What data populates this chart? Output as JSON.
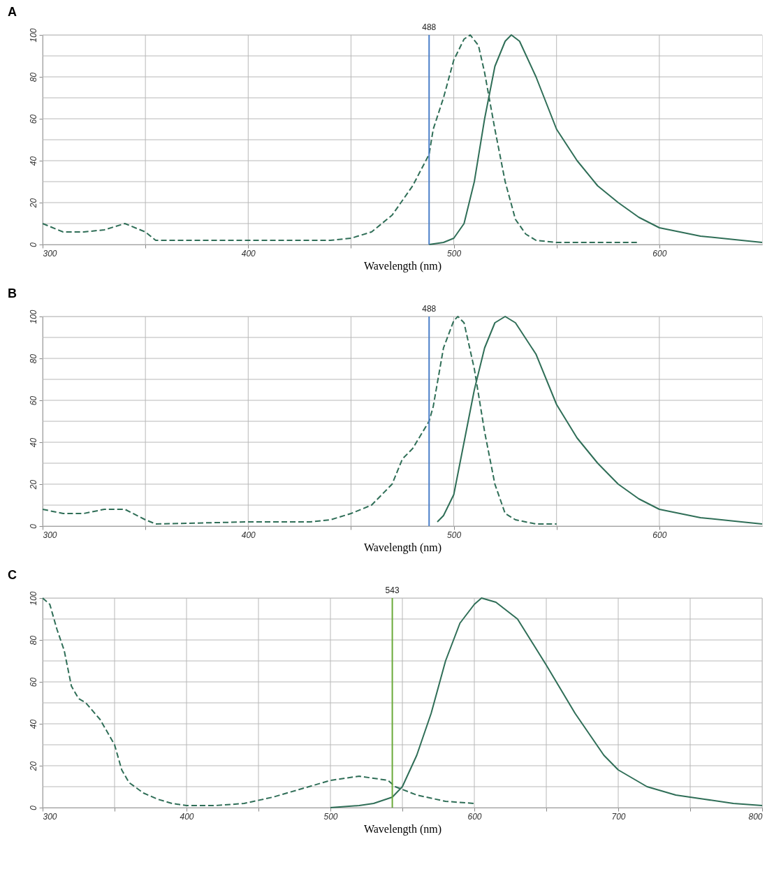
{
  "chart_data": [
    {
      "type": "line",
      "title": "A",
      "xlabel": "Wavelength (nm)",
      "xlim": [
        300,
        650
      ],
      "ylim": [
        0,
        100
      ],
      "xticks": [
        300,
        {
          "value": 350,
          "label": null
        },
        400,
        {
          "value": 450,
          "label": null
        },
        500,
        {
          "value": 550,
          "label": null
        },
        600
      ],
      "yticks": [
        0,
        {
          "value": 10,
          "label": null
        },
        20,
        {
          "value": 30,
          "label": null
        },
        40,
        {
          "value": 50,
          "label": null
        },
        60,
        {
          "value": 70,
          "label": null
        },
        80,
        {
          "value": 90,
          "label": null
        },
        100
      ],
      "grid": true,
      "series": [
        {
          "color": "#2f6e57",
          "line_style": "dashed",
          "x": [
            300,
            310,
            320,
            330,
            340,
            350,
            355,
            360,
            400,
            420,
            440,
            450,
            460,
            470,
            480,
            488,
            490,
            495,
            500,
            505,
            508,
            512,
            515,
            520,
            525,
            530,
            535,
            540,
            550,
            570,
            590
          ],
          "values": [
            10,
            6,
            6,
            7,
            10,
            6,
            2,
            2,
            2,
            2,
            2,
            3,
            6,
            14,
            28,
            43,
            55,
            70,
            88,
            98,
            100,
            95,
            82,
            55,
            30,
            12,
            5,
            2,
            1,
            1,
            1
          ]
        },
        {
          "color": "#2f6e57",
          "line_style": "solid",
          "x": [
            488,
            495,
            500,
            505,
            510,
            515,
            520,
            525,
            528,
            532,
            540,
            550,
            560,
            570,
            580,
            590,
            600,
            620,
            640,
            650
          ],
          "values": [
            0,
            1,
            3,
            10,
            30,
            60,
            85,
            97,
            100,
            97,
            80,
            55,
            40,
            28,
            20,
            13,
            8,
            4,
            2,
            1
          ]
        }
      ],
      "ref_lines": [
        {
          "axis": "x",
          "value": 488,
          "label": "488",
          "color": "#4a7fc8"
        }
      ]
    },
    {
      "type": "line",
      "title": "B",
      "xlabel": "Wavelength (nm)",
      "xlim": [
        300,
        650
      ],
      "ylim": [
        0,
        100
      ],
      "xticks": [
        300,
        {
          "value": 350,
          "label": null
        },
        400,
        {
          "value": 450,
          "label": null
        },
        500,
        {
          "value": 550,
          "label": null
        },
        600
      ],
      "yticks": [
        0,
        {
          "value": 10,
          "label": null
        },
        20,
        {
          "value": 30,
          "label": null
        },
        40,
        {
          "value": 50,
          "label": null
        },
        60,
        {
          "value": 70,
          "label": null
        },
        80,
        {
          "value": 90,
          "label": null
        },
        100
      ],
      "grid": true,
      "series": [
        {
          "color": "#2f6e57",
          "line_style": "dashed",
          "x": [
            300,
            310,
            320,
            330,
            340,
            350,
            355,
            400,
            430,
            440,
            450,
            460,
            470,
            475,
            480,
            488,
            490,
            495,
            500,
            502,
            505,
            510,
            515,
            520,
            525,
            530,
            540,
            550
          ],
          "values": [
            8,
            6,
            6,
            8,
            8,
            3,
            1,
            2,
            2,
            3,
            6,
            10,
            20,
            32,
            37,
            50,
            57,
            85,
            98,
            100,
            97,
            75,
            45,
            20,
            6,
            3,
            1,
            1
          ]
        },
        {
          "color": "#2f6e57",
          "line_style": "solid",
          "x": [
            492,
            495,
            500,
            505,
            510,
            515,
            520,
            525,
            530,
            540,
            550,
            560,
            570,
            580,
            590,
            600,
            620,
            640,
            650
          ],
          "values": [
            2,
            5,
            15,
            40,
            65,
            85,
            97,
            100,
            97,
            82,
            58,
            42,
            30,
            20,
            13,
            8,
            4,
            2,
            1
          ]
        }
      ],
      "ref_lines": [
        {
          "axis": "x",
          "value": 488,
          "label": "488",
          "color": "#4a7fc8"
        }
      ]
    },
    {
      "type": "line",
      "title": "C",
      "xlabel": "Wavelength (nm)",
      "xlim": [
        300,
        800
      ],
      "ylim": [
        0,
        100
      ],
      "xticks": [
        300,
        {
          "value": 350,
          "label": null
        },
        400,
        {
          "value": 450,
          "label": null
        },
        500,
        {
          "value": 550,
          "label": null
        },
        600,
        {
          "value": 650,
          "label": null
        },
        700,
        {
          "value": 750,
          "label": null
        },
        800
      ],
      "yticks": [
        0,
        {
          "value": 10,
          "label": null
        },
        20,
        {
          "value": 30,
          "label": null
        },
        40,
        {
          "value": 50,
          "label": null
        },
        60,
        {
          "value": 70,
          "label": null
        },
        80,
        {
          "value": 90,
          "label": null
        },
        100
      ],
      "grid": true,
      "series": [
        {
          "color": "#2f6e57",
          "line_style": "dashed",
          "x": [
            300,
            305,
            310,
            315,
            320,
            325,
            330,
            340,
            350,
            355,
            360,
            370,
            380,
            390,
            400,
            420,
            440,
            460,
            480,
            500,
            520,
            540,
            545,
            560,
            580,
            600
          ],
          "values": [
            100,
            97,
            85,
            75,
            58,
            52,
            50,
            42,
            30,
            18,
            12,
            7,
            4,
            2,
            1,
            1,
            2,
            5,
            9,
            13,
            15,
            13,
            10,
            6,
            3,
            2
          ]
        },
        {
          "color": "#2f6e57",
          "line_style": "solid",
          "x": [
            500,
            520,
            530,
            543,
            550,
            560,
            570,
            580,
            590,
            600,
            605,
            615,
            630,
            650,
            670,
            690,
            700,
            720,
            740,
            760,
            780,
            800
          ],
          "values": [
            0,
            1,
            2,
            5,
            10,
            25,
            45,
            70,
            88,
            97,
            100,
            98,
            90,
            68,
            45,
            25,
            18,
            10,
            6,
            4,
            2,
            1
          ]
        }
      ],
      "ref_lines": [
        {
          "axis": "x",
          "value": 543,
          "label": "543",
          "color": "#6aaa3a"
        }
      ]
    }
  ]
}
